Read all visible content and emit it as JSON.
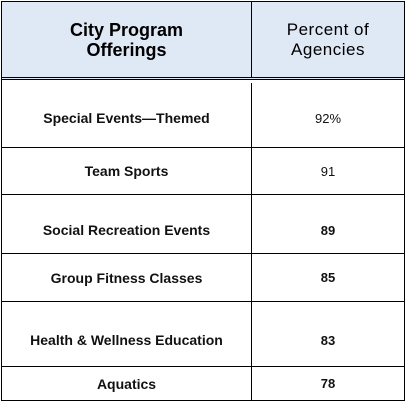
{
  "table": {
    "header": {
      "col1_line1": "City Program",
      "col1_line2": "Offerings",
      "col2_line1": "Percent of",
      "col2_line2": "Agencies"
    },
    "rows": [
      {
        "program": "Special Events—Themed",
        "percent": "92%"
      },
      {
        "program": "Team Sports",
        "percent": "91"
      },
      {
        "program": "Social Recreation Events",
        "percent": "89"
      },
      {
        "program": "Group Fitness Classes",
        "percent": "85"
      },
      {
        "program": "Health & Wellness Education",
        "percent": "83"
      },
      {
        "program": "Aquatics",
        "percent": "78"
      }
    ]
  }
}
